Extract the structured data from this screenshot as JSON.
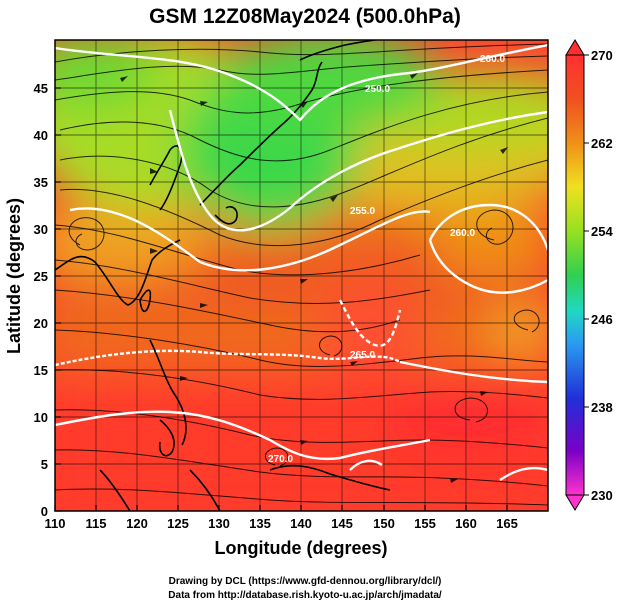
{
  "title": "GSM 12Z08May2024 (500.0hPa)",
  "x_axis": {
    "label": "Longitude (degrees)",
    "range": [
      110,
      170
    ],
    "ticks": [
      "110",
      "115",
      "120",
      "125",
      "130",
      "135",
      "140",
      "145",
      "150",
      "155",
      "160",
      "165"
    ]
  },
  "y_axis": {
    "label": "Latitude  (degrees)",
    "range": [
      0,
      50
    ],
    "ticks": [
      "0",
      "5",
      "10",
      "15",
      "20",
      "25",
      "30",
      "35",
      "40",
      "45"
    ]
  },
  "colorbar": {
    "range": [
      230,
      270
    ],
    "tick_labels": [
      "270",
      "262",
      "254",
      "246",
      "238",
      "230"
    ],
    "colors": [
      "#ff33cc",
      "#7a00c8",
      "#2030d8",
      "#2aa0f0",
      "#20d8c0",
      "#30d050",
      "#98e020",
      "#f0e020",
      "#f09018",
      "#f05020",
      "#ff3030"
    ]
  },
  "contour_labels": [
    "250.0",
    "255.0",
    "260.0",
    "260.0",
    "265.0",
    "270.0"
  ],
  "credits": {
    "drawing": "Drawing by DCL (https://www.gfd-dennou.org/library/dcl/)",
    "data": "Data from http://database.rish.kyoto-u.ac.jp/arch/jmadata/"
  },
  "chart_data": {
    "type": "heatmap",
    "title": "GSM 12Z08May2024 (500.0hPa)",
    "xlabel": "Longitude (degrees)",
    "ylabel": "Latitude  (degrees)",
    "xlim": [
      110,
      170
    ],
    "ylim": [
      0,
      50
    ],
    "colorbar_range": [
      230,
      270
    ],
    "contour_levels": [
      250,
      255,
      260,
      265,
      270
    ],
    "features": [
      "temperature field",
      "streamlines",
      "coastlines",
      "grid"
    ]
  }
}
